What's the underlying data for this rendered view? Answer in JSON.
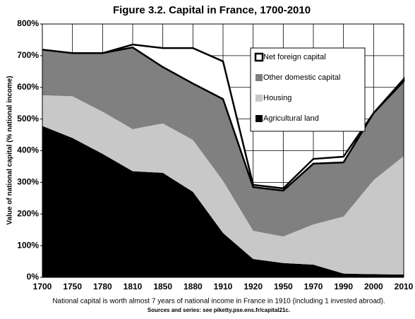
{
  "chart_data": {
    "type": "stacked-area",
    "title": "Figure 3.2. Capital in France, 1700-2010",
    "y_label": "Value of national capital (% national income)",
    "footnote": "National capital is worth almost 7 years of national income in France in 1910 (including 1 invested abroad).",
    "source": "Sources and series: see piketty.pse.ens.fr/capital21c.",
    "categories": [
      "1700",
      "1750",
      "1780",
      "1810",
      "1850",
      "1880",
      "1910",
      "1920",
      "1950",
      "1970",
      "1990",
      "2000",
      "2010"
    ],
    "series": [
      {
        "name": "Agricultural land",
        "color": "#000000",
        "values": [
          478,
          440,
          390,
          335,
          330,
          270,
          140,
          58,
          45,
          40,
          12,
          10,
          9
        ]
      },
      {
        "name": "Housing",
        "color": "#c8c8c8",
        "values": [
          97,
          132,
          133,
          133,
          156,
          164,
          165,
          89,
          84,
          127,
          180,
          297,
          374
        ]
      },
      {
        "name": "Other domestic capital",
        "color": "#808080",
        "values": [
          144,
          136,
          185,
          258,
          178,
          178,
          258,
          138,
          145,
          192,
          171,
          212,
          236
        ]
      },
      {
        "name": "Net foreign capital",
        "color": "#ffffff",
        "values": [
          0,
          0,
          0,
          9,
          60,
          112,
          119,
          7,
          7,
          15,
          18,
          0,
          7
        ]
      }
    ],
    "ylim": [
      0,
      800
    ],
    "yticks": [
      {
        "value": 0,
        "label": "0%"
      },
      {
        "value": 100,
        "label": "100%"
      },
      {
        "value": 200,
        "label": "200%"
      },
      {
        "value": 300,
        "label": "300%"
      },
      {
        "value": 400,
        "label": "400%"
      },
      {
        "value": 500,
        "label": "500%"
      },
      {
        "value": 600,
        "label": "600%"
      },
      {
        "value": 700,
        "label": "700%"
      },
      {
        "value": 800,
        "label": "800%"
      }
    ],
    "grid": true
  }
}
